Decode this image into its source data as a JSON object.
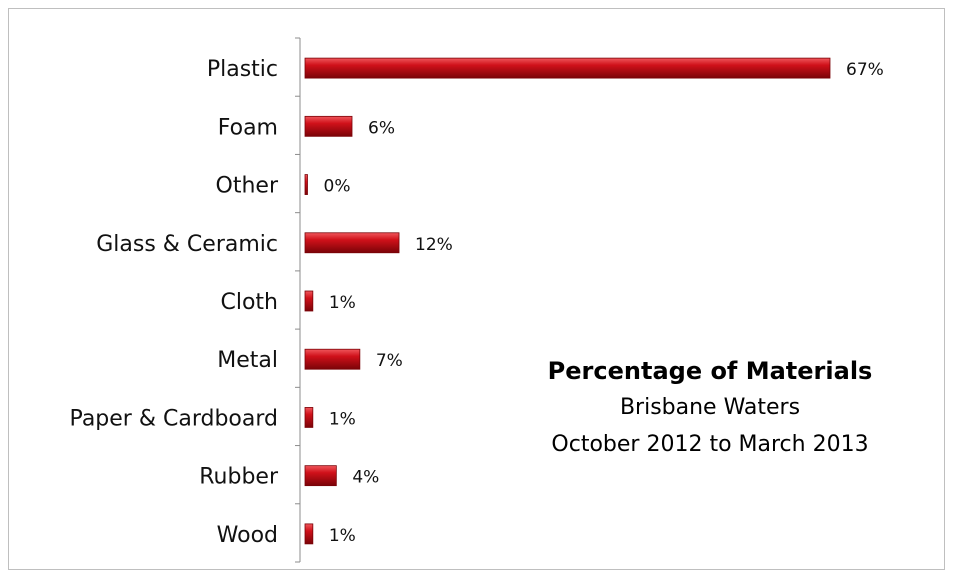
{
  "chart_data": {
    "type": "bar",
    "orientation": "horizontal",
    "title": "Percentage of Materials",
    "subtitle": [
      "Brisbane Waters",
      "October 2012 to March 2013"
    ],
    "categories": [
      "Plastic",
      "Foam",
      "Other",
      "Glass & Ceramic",
      "Cloth",
      "Metal",
      "Paper & Cardboard",
      "Rubber",
      "Wood"
    ],
    "values": [
      67,
      6,
      0,
      12,
      1,
      7,
      1,
      4,
      1
    ],
    "data_labels": [
      "67%",
      "6%",
      "0%",
      "12%",
      "1%",
      "7%",
      "1%",
      "4%",
      "1%"
    ],
    "unit": "%",
    "xlim": [
      0,
      67
    ],
    "bar_color": "#d0111a",
    "bar_highlight": "#f0575c",
    "bar_shadow": "#7a0308",
    "grid": false,
    "legend": "none"
  }
}
